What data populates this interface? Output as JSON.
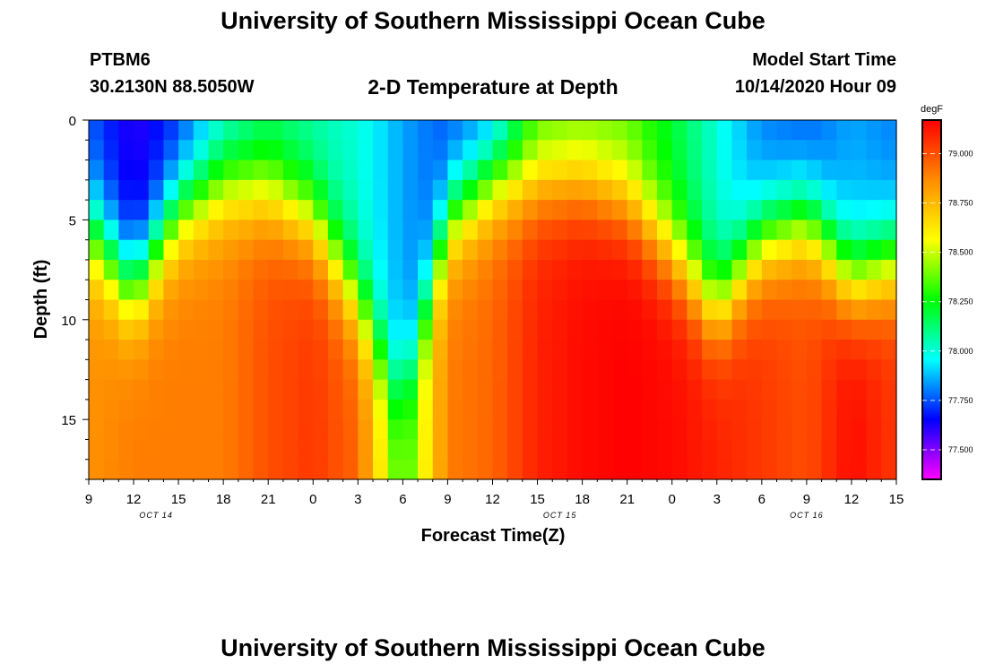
{
  "header": {
    "title": "University of Southern Mississippi Ocean Cube",
    "station": "PTBM6",
    "coords": "30.2130N 88.5050W",
    "subtitle": "2-D Temperature at Depth",
    "model_start_label": "Model Start Time",
    "model_start_value": "10/14/2020 Hour 09"
  },
  "footer": {
    "title": "University of Southern Mississippi Ocean Cube"
  },
  "colorbar": {
    "unit": "degF",
    "ticks": [
      "77.500",
      "77.750",
      "78.000",
      "78.250",
      "78.500",
      "78.750",
      "79.000"
    ],
    "range": [
      77.35,
      79.17
    ],
    "colors": [
      "#ff00ff",
      "#0000ff",
      "#00ffff",
      "#00ff00",
      "#ffff00",
      "#ff8c00",
      "#ff0000"
    ]
  },
  "chart_data": {
    "type": "heatmap",
    "title": "2-D Temperature at Depth",
    "xlabel": "Forecast Time(Z)",
    "ylabel": "Depth (ft)",
    "x_tick_labels": [
      "9",
      "12",
      "15",
      "18",
      "21",
      "0",
      "3",
      "6",
      "9",
      "12",
      "15",
      "18",
      "21",
      "0",
      "3",
      "6",
      "9",
      "12",
      "15"
    ],
    "date_labels": [
      "OCT 14",
      "OCT 15",
      "OCT 16"
    ],
    "y_tick_labels": [
      "0",
      "5",
      "10",
      "15"
    ],
    "ylim": [
      0,
      18
    ],
    "x_range_hours": [
      0,
      54
    ],
    "value_unit": "degF",
    "profiles": {
      "hours": [
        0,
        3,
        6,
        9,
        12,
        15,
        18,
        21,
        24,
        27,
        30,
        33,
        36,
        39,
        42,
        45,
        48,
        51,
        54
      ],
      "surface": [
        77.75,
        77.6,
        77.7,
        77.95,
        78.1,
        78.05,
        78.0,
        77.85,
        77.75,
        77.8,
        78.3,
        78.35,
        78.35,
        78.2,
        78.0,
        77.8,
        77.75,
        77.85,
        77.8
      ],
      "thermocline": [
        5.5,
        8.5,
        4.5,
        3.2,
        3.5,
        5.0,
        9.0,
        14.0,
        5.0,
        3.0,
        3.0,
        3.0,
        4.0,
        6.5,
        9.5,
        6.0,
        5.0,
        8.0,
        7.0
      ],
      "bottom": [
        78.85,
        78.9,
        78.9,
        78.9,
        79.0,
        79.05,
        78.95,
        78.3,
        78.9,
        78.95,
        79.1,
        79.15,
        79.17,
        79.15,
        79.1,
        79.05,
        79.0,
        79.15,
        79.05
      ]
    }
  }
}
